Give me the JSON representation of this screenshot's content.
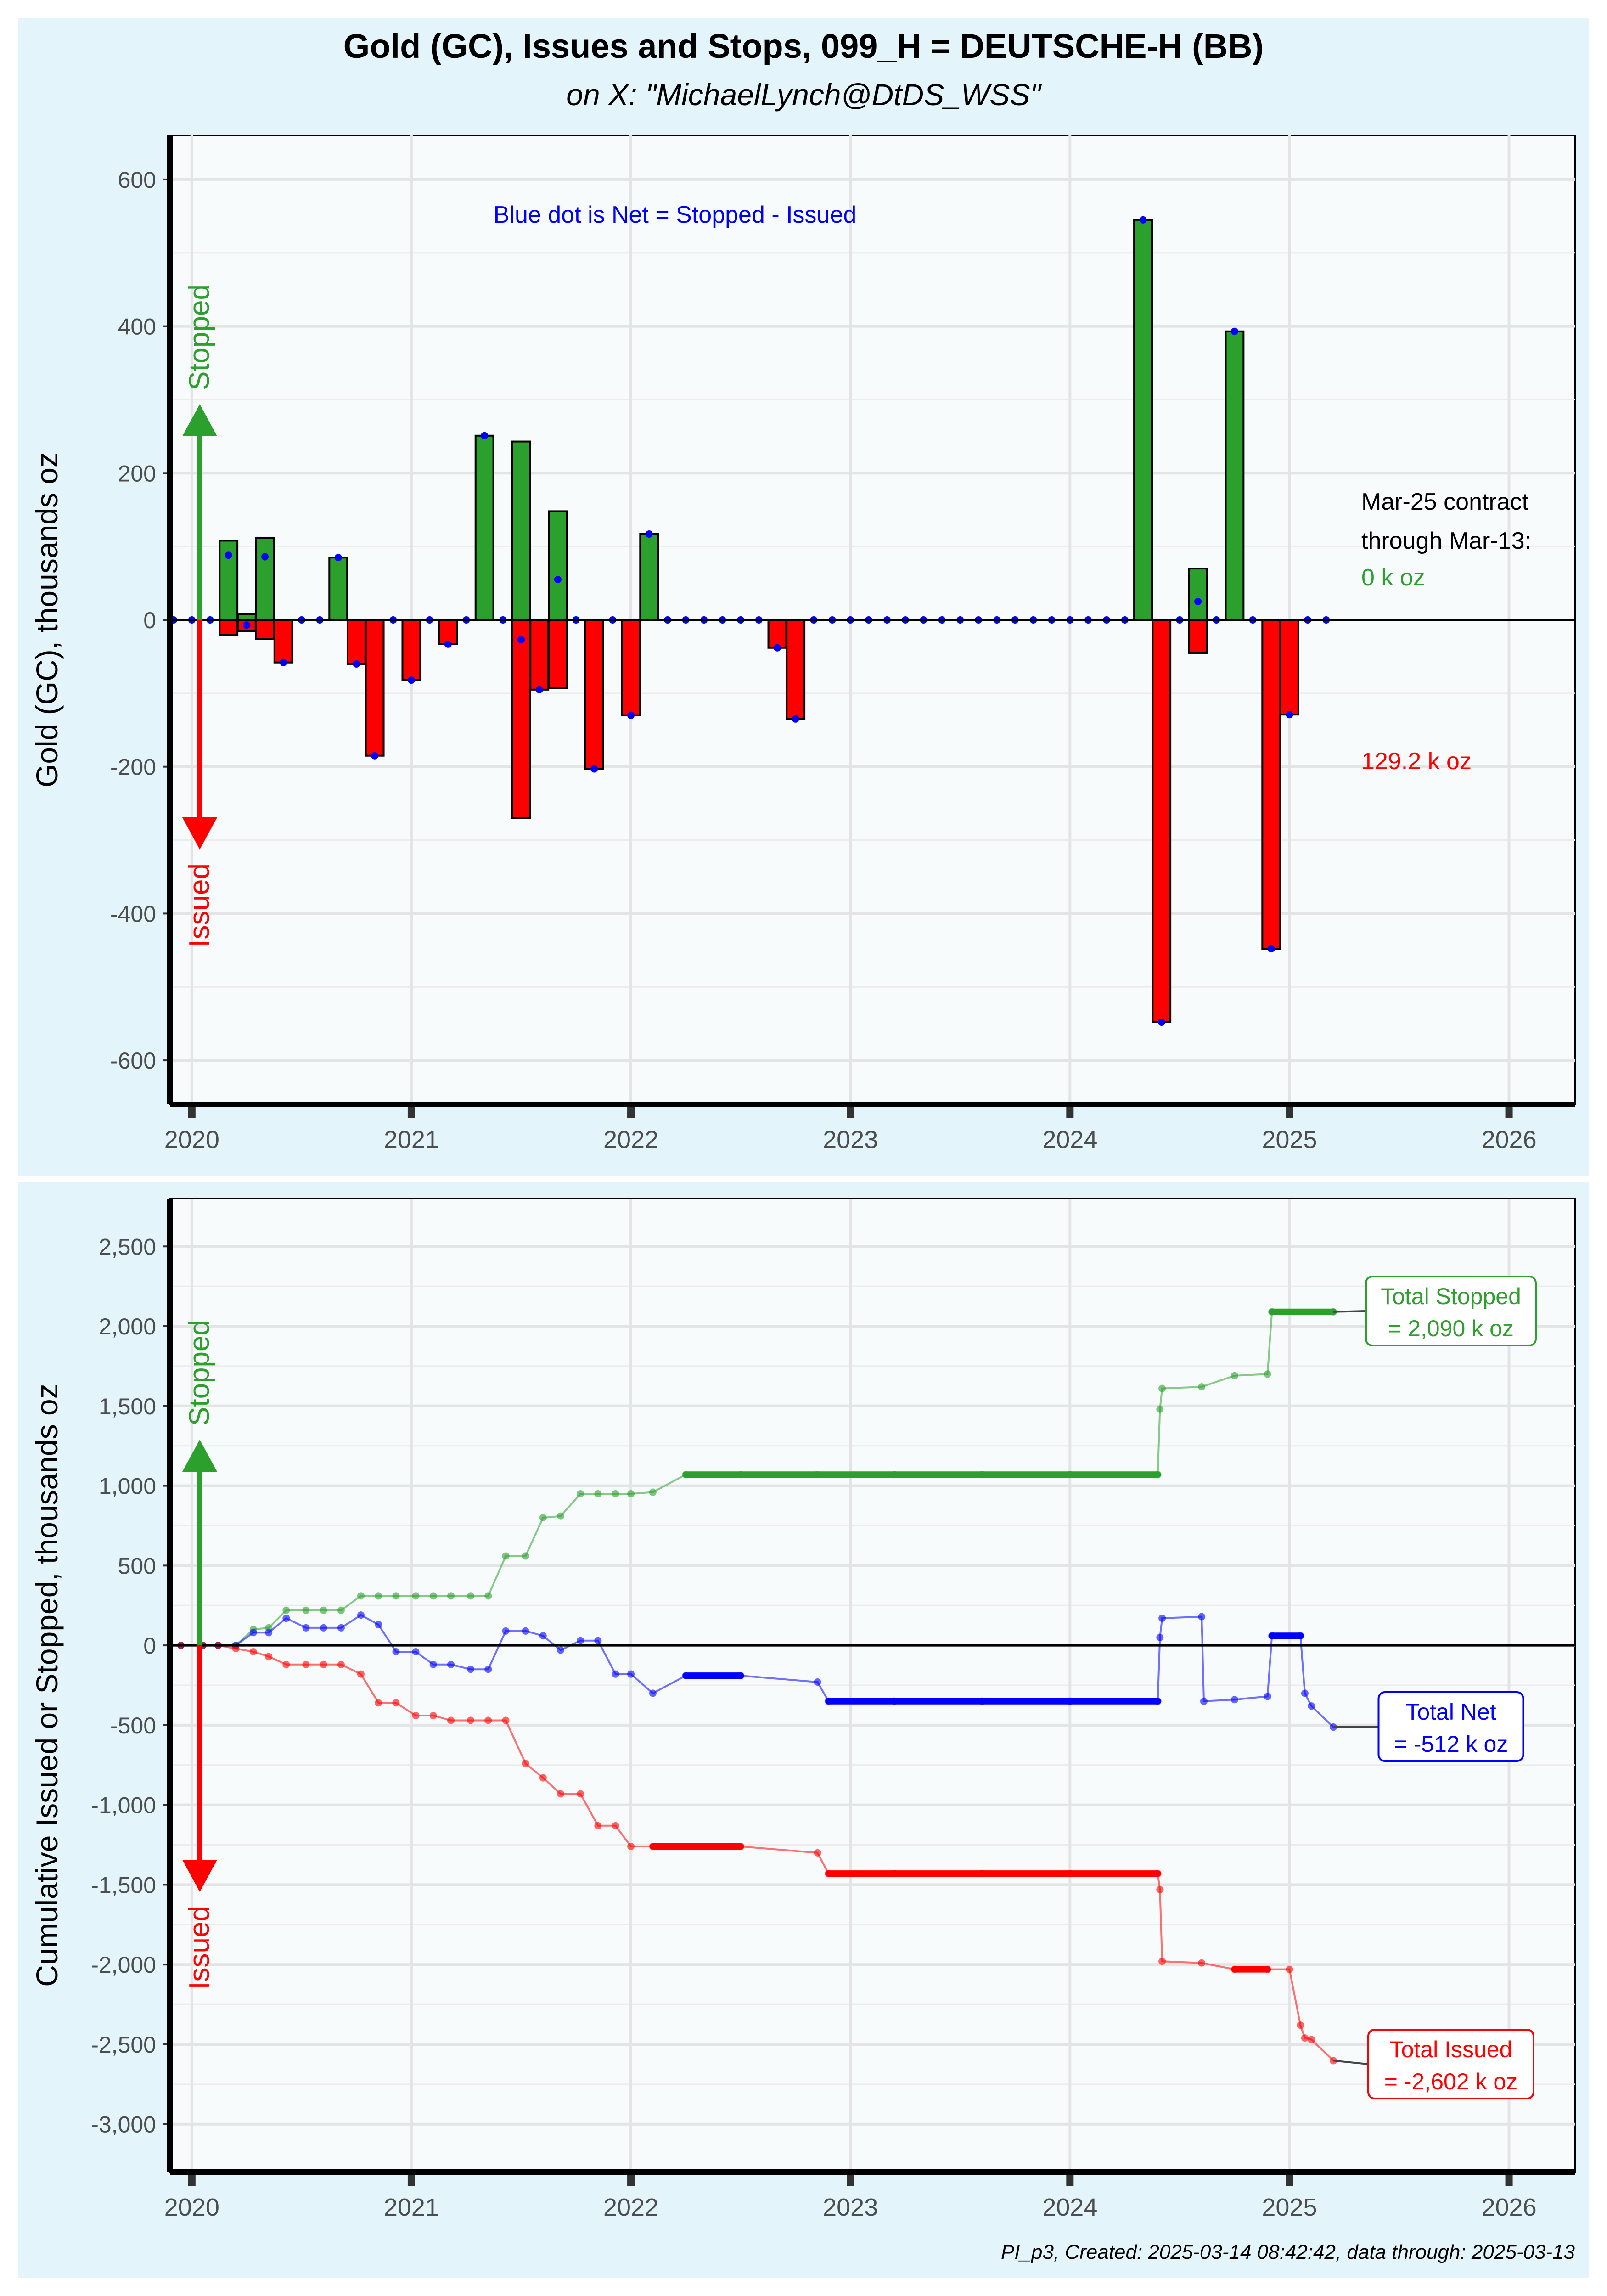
{
  "header": {
    "title": "Gold (GC), Issues and Stops, 099_H = DEUTSCHE-H (BB)",
    "subtitle": "on X:   \"MichaelLynch@DtDS_WSS\""
  },
  "colors": {
    "stopped": "#2ca02c",
    "issued": "#ff0000",
    "net": "#0000ff",
    "panel_bg": "#e3f4fa",
    "plot_bg": "#f7fbfc"
  },
  "chart_data": [
    {
      "type": "bar",
      "ylabel": "Gold (GC), thousands oz",
      "ylim": [
        -660,
        660
      ],
      "xlim": [
        2019.9,
        2026.3
      ],
      "y_ticks": [
        600,
        400,
        200,
        0,
        -200,
        -400,
        -600
      ],
      "y_tick_labels": [
        "600",
        "400",
        "200",
        "0",
        "-200",
        "-400",
        "-600"
      ],
      "x_ticks": [
        2020,
        2021,
        2022,
        2023,
        2024,
        2025,
        2026
      ],
      "x_tick_labels": [
        "2020",
        "2021",
        "2022",
        "2023",
        "2024",
        "2025",
        "2026"
      ],
      "arrow_up_label": "Stopped",
      "arrow_down_label": "Issued",
      "note": "Blue dot is Net = Stopped - Issued",
      "contract_note_line1": "Mar-25 contract",
      "contract_note_line2": " through Mar-13:",
      "contract_stopped": "0 k oz",
      "contract_issued": "129.2 k oz",
      "months": [
        2019.917,
        2020.0,
        2020.083,
        2020.167,
        2020.25,
        2020.333,
        2020.417,
        2020.5,
        2020.583,
        2020.667,
        2020.75,
        2020.833,
        2020.917,
        2021.0,
        2021.083,
        2021.167,
        2021.25,
        2021.333,
        2021.417,
        2021.5,
        2021.583,
        2021.667,
        2021.75,
        2021.833,
        2021.917,
        2022.0,
        2022.083,
        2022.167,
        2022.25,
        2022.333,
        2022.417,
        2022.5,
        2022.583,
        2022.667,
        2022.75,
        2022.833,
        2022.917,
        2023.0,
        2023.083,
        2023.167,
        2023.25,
        2023.333,
        2023.417,
        2023.5,
        2023.583,
        2023.667,
        2023.75,
        2023.833,
        2023.917,
        2024.0,
        2024.083,
        2024.167,
        2024.25,
        2024.333,
        2024.417,
        2024.5,
        2024.583,
        2024.667,
        2024.75,
        2024.833,
        2024.917,
        2025.0,
        2025.083,
        2025.167
      ],
      "series": [
        {
          "name": "Stopped",
          "values": [
            0,
            0,
            0,
            108,
            8,
            112,
            0,
            0,
            0,
            85,
            0,
            0,
            0,
            0,
            0,
            0,
            0,
            251,
            0,
            243,
            0,
            148,
            0,
            0,
            0,
            0,
            117,
            0,
            0,
            0,
            0,
            0,
            0,
            0,
            0,
            0,
            0,
            0,
            0,
            0,
            0,
            0,
            0,
            0,
            0,
            0,
            0,
            0,
            0,
            0,
            0,
            0,
            0,
            545,
            0,
            0,
            70,
            0,
            393,
            0,
            0,
            0,
            0,
            0
          ]
        },
        {
          "name": "Issued",
          "values": [
            0,
            0,
            0,
            -20,
            -15,
            -26,
            -58,
            0,
            0,
            0,
            -60,
            -185,
            0,
            -82,
            0,
            -33,
            0,
            0,
            0,
            -270,
            -95,
            -93,
            0,
            -203,
            0,
            -130,
            0,
            0,
            0,
            0,
            0,
            0,
            0,
            -38,
            -135,
            0,
            0,
            0,
            0,
            0,
            0,
            0,
            0,
            0,
            0,
            0,
            0,
            0,
            0,
            0,
            0,
            0,
            0,
            0,
            -548,
            0,
            -45,
            0,
            0,
            0,
            -448,
            -129,
            0,
            0
          ]
        },
        {
          "name": "Net",
          "values": [
            0,
            0,
            0,
            88,
            -7,
            86,
            -58,
            0,
            0,
            85,
            -60,
            -185,
            0,
            -82,
            0,
            -33,
            0,
            251,
            0,
            -27,
            -95,
            55,
            0,
            -203,
            0,
            -130,
            117,
            0,
            0,
            0,
            0,
            0,
            0,
            -38,
            -135,
            0,
            0,
            0,
            0,
            0,
            0,
            0,
            0,
            0,
            0,
            0,
            0,
            0,
            0,
            0,
            0,
            0,
            0,
            545,
            -548,
            0,
            25,
            0,
            393,
            0,
            -448,
            -129,
            0,
            0
          ]
        }
      ]
    },
    {
      "type": "line",
      "ylabel": "Cumulative Issued or Stopped, thousands oz",
      "ylim": [
        -3300,
        2800
      ],
      "xlim": [
        2019.9,
        2026.3
      ],
      "y_ticks": [
        2500,
        2000,
        1500,
        1000,
        500,
        0,
        -500,
        -1000,
        -1500,
        -2000,
        -2500,
        -3000
      ],
      "y_tick_labels": [
        "2,500",
        "2,000",
        "1,500",
        "1,000",
        "500",
        "0",
        "-500",
        "-1,000",
        "-1,500",
        "-2,000",
        "-2,500",
        "-3,000"
      ],
      "x_ticks": [
        2020,
        2021,
        2022,
        2023,
        2024,
        2025,
        2026
      ],
      "x_tick_labels": [
        "2020",
        "2021",
        "2022",
        "2023",
        "2024",
        "2025",
        "2026"
      ],
      "arrow_up_label": "Stopped",
      "arrow_down_label": "Issued",
      "series": [
        {
          "name": "Total Stopped",
          "label_line1": "Total Stopped",
          "label_line2": "= 2,090 k oz",
          "x": [
            2019.95,
            2020.05,
            2020.12,
            2020.2,
            2020.28,
            2020.35,
            2020.43,
            2020.52,
            2020.6,
            2020.68,
            2020.77,
            2020.85,
            2020.93,
            2021.02,
            2021.1,
            2021.18,
            2021.27,
            2021.35,
            2021.43,
            2021.52,
            2021.6,
            2021.68,
            2021.77,
            2021.85,
            2021.93,
            2022.0,
            2022.1,
            2022.25,
            2022.5,
            2022.85,
            2023.2,
            2023.6,
            2024.0,
            2024.4,
            2024.41,
            2024.42,
            2024.6,
            2024.75,
            2024.9,
            2024.92,
            2025.2
          ],
          "y": [
            0,
            0,
            0,
            0,
            100,
            110,
            220,
            220,
            220,
            220,
            310,
            310,
            310,
            310,
            310,
            310,
            310,
            310,
            560,
            560,
            800,
            810,
            950,
            950,
            950,
            950,
            960,
            1070,
            1070,
            1070,
            1070,
            1070,
            1070,
            1070,
            1480,
            1610,
            1620,
            1690,
            1700,
            2090,
            2090
          ]
        },
        {
          "name": "Total Net",
          "label_line1": "Total Net",
          "label_line2": "= -512 k oz",
          "x": [
            2019.95,
            2020.05,
            2020.12,
            2020.2,
            2020.28,
            2020.35,
            2020.43,
            2020.52,
            2020.6,
            2020.68,
            2020.77,
            2020.85,
            2020.93,
            2021.02,
            2021.1,
            2021.18,
            2021.27,
            2021.35,
            2021.43,
            2021.52,
            2021.6,
            2021.68,
            2021.77,
            2021.85,
            2021.93,
            2022.0,
            2022.1,
            2022.25,
            2022.5,
            2022.85,
            2022.9,
            2023.2,
            2023.6,
            2024.0,
            2024.4,
            2024.41,
            2024.42,
            2024.6,
            2024.61,
            2024.75,
            2024.9,
            2024.92,
            2025.05,
            2025.07,
            2025.1,
            2025.2
          ],
          "y": [
            0,
            0,
            0,
            0,
            80,
            80,
            170,
            110,
            110,
            110,
            190,
            130,
            -40,
            -40,
            -120,
            -120,
            -150,
            -150,
            90,
            90,
            60,
            -30,
            30,
            30,
            -180,
            -180,
            -300,
            -190,
            -190,
            -230,
            -350,
            -350,
            -350,
            -350,
            -350,
            50,
            170,
            180,
            -350,
            -340,
            -320,
            60,
            60,
            -300,
            -380,
            -512
          ]
        },
        {
          "name": "Total Issued",
          "label_line1": "Total Issued",
          "label_line2": "= -2,602 k oz",
          "x": [
            2019.95,
            2020.05,
            2020.12,
            2020.2,
            2020.28,
            2020.35,
            2020.43,
            2020.52,
            2020.6,
            2020.68,
            2020.77,
            2020.85,
            2020.93,
            2021.02,
            2021.1,
            2021.18,
            2021.27,
            2021.35,
            2021.43,
            2021.52,
            2021.6,
            2021.68,
            2021.77,
            2021.85,
            2021.93,
            2022.0,
            2022.1,
            2022.25,
            2022.5,
            2022.85,
            2022.9,
            2023.2,
            2023.6,
            2024.0,
            2024.4,
            2024.41,
            2024.42,
            2024.6,
            2024.75,
            2024.9,
            2025.0,
            2025.05,
            2025.07,
            2025.1,
            2025.2
          ],
          "y": [
            0,
            0,
            0,
            -20,
            -40,
            -70,
            -120,
            -120,
            -120,
            -120,
            -180,
            -360,
            -360,
            -440,
            -440,
            -470,
            -470,
            -470,
            -470,
            -740,
            -830,
            -930,
            -930,
            -1130,
            -1130,
            -1260,
            -1260,
            -1260,
            -1260,
            -1300,
            -1430,
            -1430,
            -1430,
            -1430,
            -1430,
            -1530,
            -1980,
            -1990,
            -2030,
            -2030,
            -2030,
            -2380,
            -2460,
            -2470,
            -2602
          ]
        }
      ]
    }
  ],
  "footer": {
    "text": "PI_p3, Created: 2025-03-14 08:42:42, data through: 2025-03-13"
  }
}
